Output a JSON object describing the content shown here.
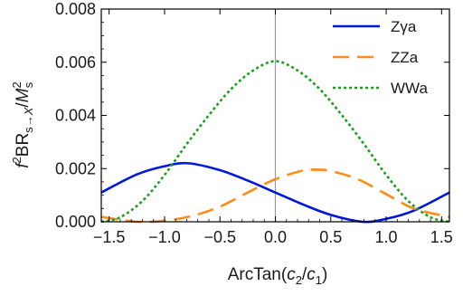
{
  "chart_data": {
    "type": "line",
    "xlabel": "ArcTan(c2/c1)",
    "ylabel": "f2BRs→X/Ms2",
    "xlim": [
      -1.5708,
      1.5708
    ],
    "ylim": [
      0,
      0.008
    ],
    "x_ticks": [
      -1.5,
      -1.0,
      -0.5,
      0.0,
      0.5,
      1.0,
      1.5
    ],
    "x_tick_labels": [
      "−1.5",
      "−1.0",
      "−0.5",
      "0.0",
      "0.5",
      "1.0",
      "1.5"
    ],
    "y_ticks": [
      0.0,
      0.002,
      0.004,
      0.006,
      0.008
    ],
    "y_tick_labels": [
      "0.000",
      "0.002",
      "0.004",
      "0.006",
      "0.008"
    ],
    "grid": false,
    "legend_position": "top-right",
    "reference_line_x": 0.0,
    "series": [
      {
        "name": "Zγa",
        "color": "#0018d8",
        "dash": "solid",
        "x": [
          -1.5708,
          -1.25,
          -1.0,
          -0.7854,
          -0.5,
          -0.25,
          0.0,
          0.25,
          0.5,
          0.7854,
          1.0,
          1.25,
          1.5708
        ],
        "y": [
          0.0011,
          0.00178,
          0.00209,
          0.0022,
          0.00194,
          0.00155,
          0.0011,
          0.00065,
          0.00026,
          0.0,
          0.00011,
          0.00042,
          0.0011
        ]
      },
      {
        "name": "ZZa",
        "color": "#ff8c1a",
        "dash": "dashed",
        "x": [
          -1.5708,
          -1.25,
          -1.0,
          -0.75,
          -0.5,
          -0.25,
          0.0,
          0.25,
          0.35,
          0.5,
          0.75,
          1.0,
          1.25,
          1.5708
        ],
        "y": [
          0.00018,
          0.0,
          4e-05,
          0.00022,
          0.00057,
          0.0011,
          0.0016,
          0.00193,
          0.00196,
          0.00191,
          0.00159,
          0.00104,
          0.0005,
          0.00018
        ]
      },
      {
        "name": "WWa",
        "color": "#1aa01a",
        "dash": "dotted",
        "x": [
          -1.5708,
          -1.4,
          -1.2,
          -1.0,
          -0.8,
          -0.6,
          -0.4,
          -0.2,
          0.0,
          0.2,
          0.4,
          0.6,
          0.8,
          1.0,
          1.2,
          1.4,
          1.5708
        ],
        "y": [
          0.0,
          0.00017,
          0.00078,
          0.00176,
          0.00292,
          0.00401,
          0.00499,
          0.00569,
          0.00604,
          0.00569,
          0.00499,
          0.00401,
          0.00292,
          0.00176,
          0.00078,
          0.00017,
          0.0
        ]
      }
    ]
  }
}
